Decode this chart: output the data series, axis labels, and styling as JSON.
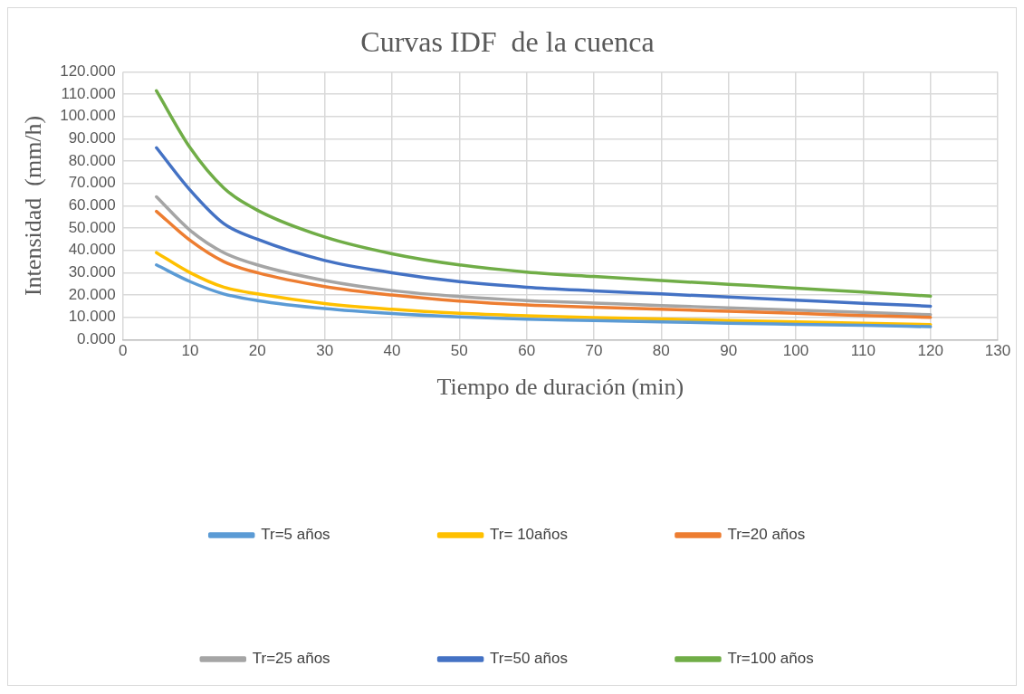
{
  "chart_data": {
    "type": "line",
    "title": "Curvas IDF  de la cuenca",
    "xlabel": "Tiempo de duración (min)",
    "ylabel": "Intensidad  (mm/h)",
    "x": [
      5,
      10,
      15,
      20,
      30,
      40,
      50,
      60,
      70,
      80,
      90,
      100,
      110,
      120
    ],
    "series": [
      {
        "name": "Tr=5 años",
        "color": "#5b9bd5",
        "values": [
          33.5,
          26,
          20.5,
          17.5,
          13.9,
          11.7,
          10.2,
          9.2,
          8.6,
          8,
          7.4,
          6.9,
          6.4,
          5.8
        ]
      },
      {
        "name": "Tr= 10años",
        "color": "#ffc000",
        "values": [
          39,
          30,
          23.5,
          20.5,
          16.2,
          13.6,
          11.8,
          10.7,
          9.9,
          9.3,
          8.6,
          8,
          7.4,
          6.8
        ]
      },
      {
        "name": "Tr=20 años",
        "color": "#ed7d31",
        "values": [
          57.5,
          44.5,
          35,
          30,
          23.8,
          20,
          17.3,
          15.6,
          14.6,
          13.6,
          12.7,
          11.8,
          10.8,
          10
        ]
      },
      {
        "name": "Tr=25 años",
        "color": "#a5a5a5",
        "values": [
          64,
          49,
          39,
          33.5,
          26.5,
          22,
          19.3,
          17.5,
          16.4,
          15.3,
          14.3,
          13.2,
          12.2,
          11.2
        ]
      },
      {
        "name": "Tr=50 años",
        "color": "#4472c4",
        "values": [
          86,
          67,
          52,
          45,
          35.5,
          30,
          26,
          23.5,
          21.9,
          20.5,
          19.1,
          17.7,
          16.3,
          15
        ]
      },
      {
        "name": "Tr=100 años",
        "color": "#70ad47",
        "values": [
          111.5,
          86,
          68,
          58,
          46,
          38.5,
          33.5,
          30.3,
          28.3,
          26.5,
          24.8,
          23.1,
          21.3,
          19.5
        ]
      }
    ],
    "xlim": [
      0,
      130
    ],
    "xticks": [
      0,
      10,
      20,
      30,
      40,
      50,
      60,
      70,
      80,
      90,
      100,
      110,
      120,
      130
    ],
    "ylim": [
      0,
      120
    ],
    "yticks": [
      {
        "value": 0,
        "label": "0.000"
      },
      {
        "value": 10,
        "label": "10.000"
      },
      {
        "value": 20,
        "label": "20.000"
      },
      {
        "value": 30,
        "label": "30.000"
      },
      {
        "value": 40,
        "label": "40.000"
      },
      {
        "value": 50,
        "label": "50.000"
      },
      {
        "value": 60,
        "label": "60.000"
      },
      {
        "value": 70,
        "label": "70.000"
      },
      {
        "value": 80,
        "label": "80.000"
      },
      {
        "value": 90,
        "label": "90.000"
      },
      {
        "value": 100,
        "label": "100.000"
      },
      {
        "value": 110,
        "label": "110.000"
      },
      {
        "value": 120,
        "label": "120.000"
      }
    ],
    "grid": true,
    "legend": "bottom",
    "marker": "none",
    "line_style": "solid"
  }
}
